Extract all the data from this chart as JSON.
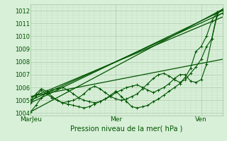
{
  "title": "",
  "xlabel": "Pression niveau de la mer( hPa )",
  "bg_color": "#d8efd8",
  "plot_bg_color": "#d8efd8",
  "grid_major_color": "#a8c8a8",
  "grid_minor_color": "#c0dcc0",
  "line_color": "#005500",
  "ylim": [
    1003.8,
    1012.5
  ],
  "yticks": [
    1004,
    1005,
    1006,
    1007,
    1008,
    1009,
    1010,
    1011,
    1012
  ],
  "xlim": [
    0,
    216
  ],
  "xticks": [
    0,
    96,
    192
  ],
  "xtick_labels": [
    "MarJeu",
    "Mer",
    "Ven"
  ],
  "straight_lines": [
    {
      "x": [
        0,
        216
      ],
      "y": [
        1004.1,
        1012.1
      ]
    },
    {
      "x": [
        0,
        216
      ],
      "y": [
        1004.8,
        1012.0
      ]
    },
    {
      "x": [
        0,
        216
      ],
      "y": [
        1005.0,
        1011.8
      ]
    },
    {
      "x": [
        0,
        216
      ],
      "y": [
        1005.2,
        1011.5
      ]
    },
    {
      "x": [
        0,
        216
      ],
      "y": [
        1005.3,
        1008.2
      ]
    }
  ],
  "wiggly_lines": [
    {
      "x": [
        0,
        6,
        12,
        18,
        24,
        30,
        36,
        42,
        48,
        54,
        60,
        66,
        72,
        78,
        84,
        90,
        96,
        102,
        108,
        114,
        120,
        126,
        132,
        138,
        144,
        150,
        156,
        162,
        168,
        174,
        180,
        186,
        192,
        198,
        204,
        210,
        216
      ],
      "y": [
        1004.1,
        1004.6,
        1005.2,
        1005.6,
        1005.8,
        1005.9,
        1006.0,
        1005.8,
        1005.5,
        1005.2,
        1005.0,
        1004.9,
        1004.8,
        1004.9,
        1005.1,
        1005.3,
        1005.6,
        1005.8,
        1006.0,
        1006.1,
        1006.2,
        1006.0,
        1005.8,
        1005.6,
        1005.8,
        1006.0,
        1006.3,
        1006.7,
        1007.0,
        1007.0,
        1006.5,
        1006.4,
        1006.6,
        1007.8,
        1009.8,
        1011.8,
        1012.1
      ]
    },
    {
      "x": [
        0,
        6,
        12,
        18,
        24,
        30,
        36,
        42,
        48,
        54,
        60,
        66,
        72,
        78,
        84,
        90,
        96,
        102,
        108,
        114,
        120,
        126,
        132,
        138,
        144,
        150,
        156,
        162,
        168,
        174,
        180,
        186,
        192,
        198,
        204,
        210,
        216
      ],
      "y": [
        1004.8,
        1005.3,
        1005.8,
        1005.5,
        1005.2,
        1005.0,
        1004.8,
        1004.7,
        1004.6,
        1004.5,
        1004.4,
        1004.5,
        1004.7,
        1004.9,
        1005.1,
        1005.4,
        1005.7,
        1005.3,
        1004.9,
        1004.5,
        1004.4,
        1004.5,
        1004.6,
        1004.9,
        1005.1,
        1005.4,
        1005.7,
        1006.0,
        1006.3,
        1006.8,
        1007.5,
        1008.8,
        1009.2,
        1010.0,
        1011.2,
        1011.9,
        1012.0
      ]
    },
    {
      "x": [
        0,
        6,
        12,
        18,
        24,
        30,
        36,
        42,
        48,
        54,
        60,
        66,
        72,
        78,
        84,
        90,
        96,
        102,
        108,
        114,
        120,
        126,
        132,
        138,
        144,
        150,
        156,
        162,
        168,
        174,
        180,
        186,
        192,
        198,
        204,
        210,
        216
      ],
      "y": [
        1005.0,
        1005.5,
        1005.9,
        1005.7,
        1005.3,
        1005.0,
        1004.8,
        1004.9,
        1005.0,
        1005.2,
        1005.5,
        1005.9,
        1006.1,
        1005.9,
        1005.6,
        1005.3,
        1005.1,
        1005.0,
        1005.1,
        1005.3,
        1005.5,
        1005.9,
        1006.3,
        1006.7,
        1007.0,
        1007.1,
        1006.9,
        1006.6,
        1006.4,
        1006.6,
        1007.1,
        1007.6,
        1008.2,
        1009.2,
        1009.8,
        1011.6,
        1011.8
      ]
    }
  ]
}
